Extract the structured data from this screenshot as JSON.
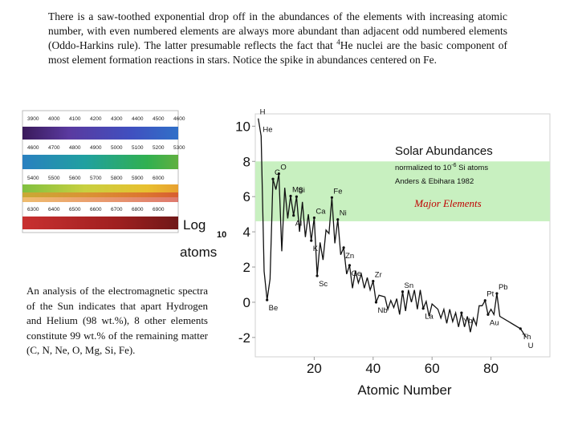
{
  "intro": [
    "There is a saw-toothed exponential drop off in the abundances of the elements with increasing atomic number, with even numbered elements are always more abundant than adjacent odd numbered elements (Oddo-Harkins rule). The latter presumable reflects the fact that ",
    "4",
    "He nuclei are the basic component of most element formation reactions in stars. Notice the spike in abundances centered on Fe."
  ],
  "side_text": "An analysis of the electromagnetic spectra of the Sun indicates that apart Hydrogen and Helium (98 wt.%), 8 other elements constitute 99 wt.% of the remaining matter (C, N, Ne, O, Mg, Si, Fe).",
  "spectrum_labels": [
    [
      "3900",
      "4000",
      "4100",
      "4200",
      "4300",
      "4400",
      "4500",
      "4600"
    ],
    [
      "4600",
      "4700",
      "4800",
      "4900",
      "5000",
      "5100",
      "5200",
      "5300"
    ],
    [
      "5400",
      "5500",
      "5600",
      "5700",
      "5800",
      "5900",
      "6000"
    ],
    [
      "6300",
      "6400",
      "6500",
      "6600",
      "6700",
      "6800",
      "6900"
    ]
  ],
  "chart_data": {
    "type": "line",
    "title": "Solar Abundances",
    "subtitle": [
      "normalized to 10",
      "-6",
      " Si atoms"
    ],
    "source": "Anders & Ebihara 1982",
    "x_label": "Atomic Number",
    "y_label": [
      "Log",
      "10",
      "atoms"
    ],
    "band": {
      "label": "Major Elements",
      "range": [
        4.6,
        8.0
      ],
      "color": "#c8f0c0"
    },
    "xlim": [
      0,
      100
    ],
    "ylim": [
      -3.1,
      10.7
    ],
    "xticks": [
      20,
      40,
      60,
      80
    ],
    "yticks": [
      10,
      8,
      6,
      4,
      2,
      0,
      -2
    ],
    "series": [
      {
        "color": "#111111",
        "x": [
          1,
          2,
          3,
          4,
          5,
          6,
          7,
          8,
          9,
          10,
          11,
          12,
          13,
          14,
          15,
          16,
          17,
          18,
          19,
          20,
          21,
          22,
          23,
          24,
          25,
          26,
          27,
          28,
          29,
          30,
          31,
          32,
          33,
          34,
          35,
          36,
          37,
          38,
          39,
          40,
          41,
          42,
          44,
          45,
          46,
          47,
          48,
          49,
          50,
          51,
          52,
          53,
          54,
          55,
          56,
          57,
          58,
          59,
          60,
          62,
          63,
          64,
          65,
          66,
          67,
          68,
          69,
          70,
          71,
          72,
          73,
          74,
          75,
          76,
          77,
          78,
          79,
          80,
          81,
          82,
          83,
          90,
          92
        ],
        "values": [
          10.44,
          9.44,
          1.76,
          0.13,
          1.32,
          7.0,
          6.4,
          7.3,
          2.9,
          6.5,
          4.76,
          6.03,
          4.93,
          6.0,
          4.0,
          5.7,
          3.7,
          5.0,
          3.5,
          4.8,
          1.5,
          3.4,
          2.4,
          4.1,
          3.9,
          5.95,
          3.35,
          4.7,
          2.7,
          3.1,
          1.6,
          2.1,
          0.8,
          1.8,
          1.1,
          1.6,
          0.8,
          1.4,
          0.7,
          1.2,
          0.0,
          0.4,
          0.3,
          -0.4,
          0.1,
          -0.3,
          0.2,
          -0.7,
          0.6,
          -0.5,
          0.7,
          0.0,
          0.7,
          -0.4,
          0.7,
          -0.35,
          0.05,
          -0.8,
          -0.1,
          -0.4,
          -0.9,
          -0.4,
          -1.2,
          -0.4,
          -1.1,
          -0.6,
          -1.4,
          -0.6,
          -1.4,
          -0.8,
          -1.7,
          -0.9,
          -1.3,
          -0.2,
          -0.2,
          0.1,
          -0.7,
          -0.4,
          -0.7,
          0.5,
          -0.8,
          -1.5,
          -2.0
        ]
      }
    ],
    "annotations": [
      {
        "text": "H",
        "x": 1
      },
      {
        "text": "He",
        "x": 2
      },
      {
        "text": "Be",
        "x": 4
      },
      {
        "text": "C",
        "x": 6
      },
      {
        "text": "O",
        "x": 8
      },
      {
        "text": "Mg",
        "x": 12
      },
      {
        "text": "Al",
        "x": 13
      },
      {
        "text": "Si",
        "x": 14
      },
      {
        "text": "K",
        "x": 19
      },
      {
        "text": "Ca",
        "x": 20
      },
      {
        "text": "Sc",
        "x": 21
      },
      {
        "text": "Fe",
        "x": 26
      },
      {
        "text": "Ni",
        "x": 28
      },
      {
        "text": "Zn",
        "x": 30
      },
      {
        "text": "Ge",
        "x": 32
      },
      {
        "text": "Zr",
        "x": 40
      },
      {
        "text": "Nb",
        "x": 41
      },
      {
        "text": "Sn",
        "x": 50
      },
      {
        "text": "La",
        "x": 57
      },
      {
        "text": "Yb",
        "x": 70
      },
      {
        "text": "Pt",
        "x": 78
      },
      {
        "text": "Au",
        "x": 79
      },
      {
        "text": "Pb",
        "x": 82
      },
      {
        "text": "Th",
        "x": 90
      },
      {
        "text": "U",
        "x": 92
      }
    ]
  }
}
